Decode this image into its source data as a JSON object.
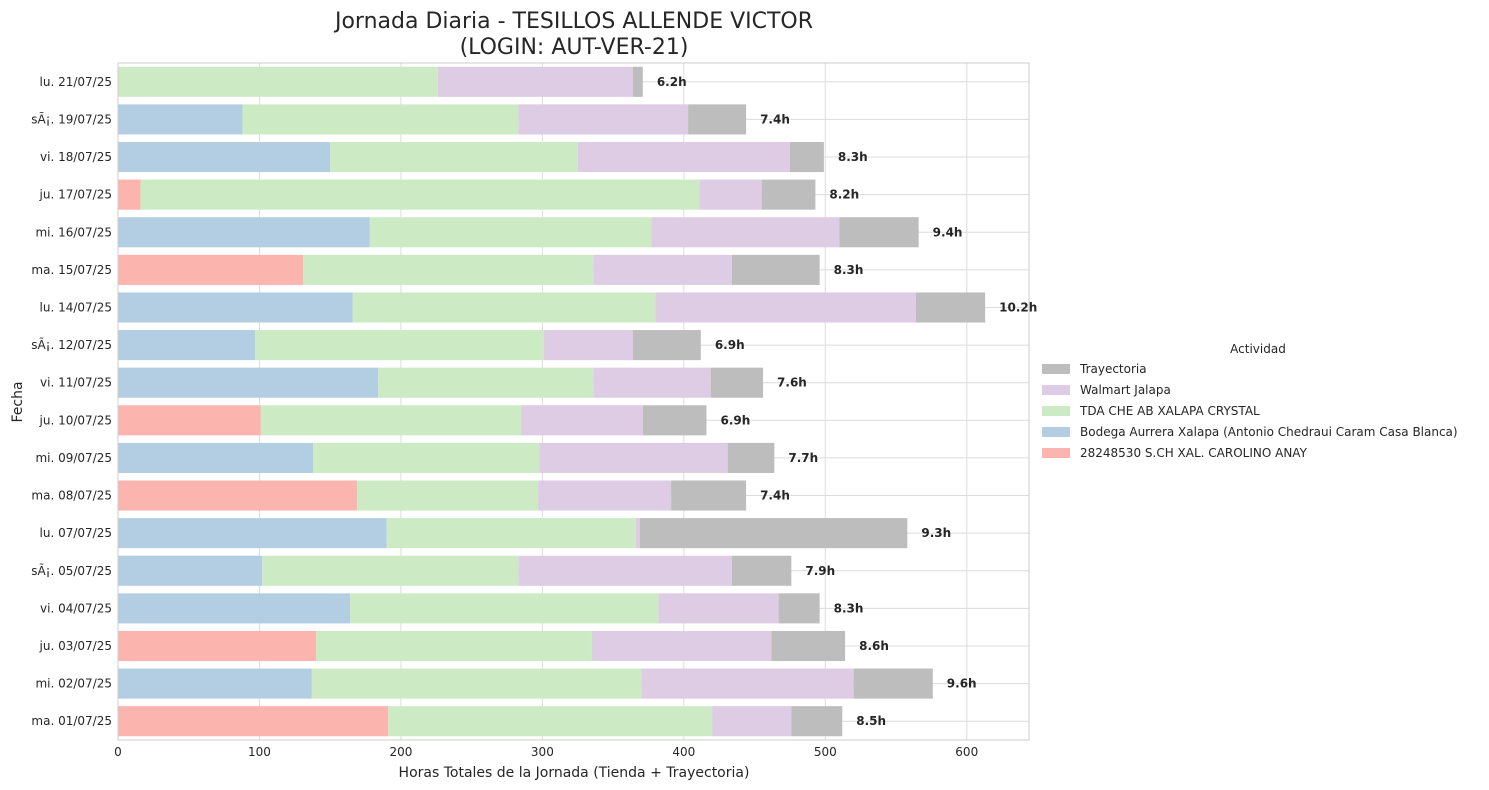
{
  "chart_data": {
    "type": "bar",
    "orientation": "horizontal",
    "stacked": true,
    "title": "Jornada Diaria - TESILLOS ALLENDE VICTOR",
    "subtitle": "(LOGIN: AUT-VER-21)",
    "xlabel": "Horas Totales de la Jornada (Tienda + Trayectoria)",
    "ylabel": "Fecha",
    "xlim": [
      0,
      644
    ],
    "xticks": [
      0,
      100,
      200,
      300,
      400,
      500,
      600
    ],
    "grid": true,
    "legend_title": "Actividad",
    "legend_position": "center-right",
    "categories": [
      "ma. 01/07/25",
      "mi. 02/07/25",
      "ju. 03/07/25",
      "vi. 04/07/25",
      "sÃ¡. 05/07/25",
      "lu. 07/07/25",
      "ma. 08/07/25",
      "mi. 09/07/25",
      "ju. 10/07/25",
      "vi. 11/07/25",
      "sÃ¡. 12/07/25",
      "lu. 14/07/25",
      "ma. 15/07/25",
      "mi. 16/07/25",
      "ju. 17/07/25",
      "vi. 18/07/25",
      "sÃ¡. 19/07/25",
      "lu. 21/07/25"
    ],
    "series": [
      {
        "name": "28248530 S.CH XAL. CAROLINO ANAY",
        "color": "#fbb4ae",
        "values": [
          191,
          0,
          140,
          0,
          0,
          0,
          169,
          0,
          101,
          0,
          0,
          0,
          131,
          0,
          16,
          0,
          0,
          0
        ]
      },
      {
        "name": "Bodega Aurrera Xalapa (Antonio Chedraui Caram Casa Blanca)",
        "color": "#b3cde3",
        "values": [
          0,
          137,
          0,
          164,
          102,
          190,
          0,
          138,
          0,
          184,
          97,
          166,
          0,
          178,
          0,
          150,
          88,
          0
        ]
      },
      {
        "name": "TDA CHE AB XALAPA CRYSTAL",
        "color": "#ccebc5",
        "values": [
          229,
          233,
          195,
          218,
          181,
          176,
          128,
          160,
          184,
          152,
          204,
          214,
          205,
          199,
          395,
          175,
          195,
          226
        ]
      },
      {
        "name": "Walmart Jalapa",
        "color": "#decbe4",
        "values": [
          56,
          150,
          127,
          85,
          151,
          3,
          94,
          133,
          86,
          83,
          63,
          184,
          98,
          133,
          44,
          150,
          120,
          138
        ]
      },
      {
        "name": "Trayectoria",
        "color": "#bdbdbd",
        "values": [
          36,
          56,
          52,
          29,
          42,
          189,
          53,
          33,
          45,
          37,
          48,
          49,
          62,
          56,
          38,
          24,
          41,
          7
        ]
      }
    ],
    "bar_labels": [
      "8.5h",
      "9.6h",
      "8.6h",
      "8.3h",
      "7.9h",
      "9.3h",
      "7.4h",
      "7.7h",
      "6.9h",
      "7.6h",
      "6.9h",
      "10.2h",
      "8.3h",
      "9.4h",
      "8.2h",
      "8.3h",
      "7.4h",
      "6.2h"
    ],
    "legend_order": [
      "Trayectoria",
      "Walmart Jalapa",
      "TDA CHE AB XALAPA CRYSTAL",
      "Bodega Aurrera Xalapa (Antonio Chedraui Caram Casa Blanca)",
      "28248530 S.CH XAL. CAROLINO ANAY"
    ]
  }
}
